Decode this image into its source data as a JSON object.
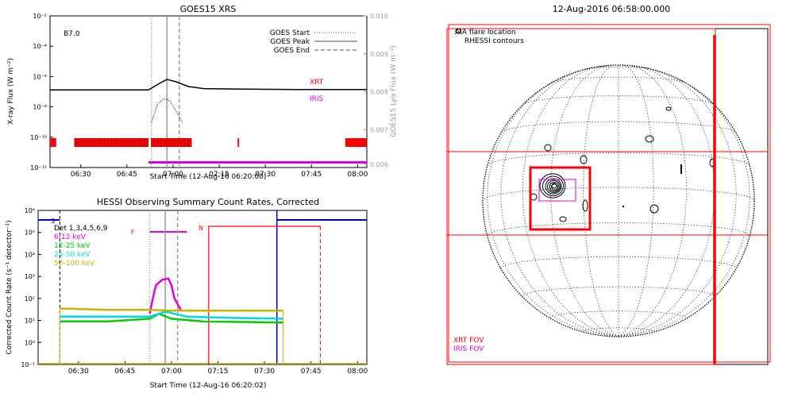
{
  "chart_data": [
    {
      "type": "line",
      "title": "GOES15 XRS",
      "xlabel": "Start Time (12-Aug-16 06:20:00)",
      "ylabel_left": "X-ray Flux (W m⁻²)",
      "ylabel_right": "GOES15 Lyα Flux (W m⁻²)",
      "x_ticks": [
        "06:30",
        "06:45",
        "07:00",
        "07:15",
        "07:30",
        "07:45",
        "08:00"
      ],
      "y_ticks_left": [
        "10⁻²",
        "10⁻⁴",
        "10⁻⁶",
        "10⁻⁸",
        "10⁻¹⁰",
        "10⁻¹²"
      ],
      "y_ticks_right": [
        "0.010",
        "0.009",
        "0.008",
        "0.007",
        "0.006"
      ],
      "class_label": "B7.0",
      "legend": [
        "GOES Start",
        "GOES Peak",
        "GOES End"
      ],
      "legend_position": "top-right",
      "instrument_labels": [
        "XRT",
        "IRIS"
      ],
      "markers": {
        "goes_start": "06:53",
        "goes_peak": "06:58",
        "goes_end": "07:02"
      },
      "series": [
        {
          "name": "long",
          "x": [
            "06:20",
            "06:40",
            "06:52",
            "06:55",
            "06:58",
            "07:01",
            "07:05",
            "07:10",
            "07:20",
            "07:40",
            "08:03"
          ],
          "y": [
            1.3e-07,
            1.3e-07,
            1.3e-07,
            3e-07,
            6.5e-07,
            4.5e-07,
            2.2e-07,
            1.6e-07,
            1.5e-07,
            1.4e-07,
            1.4e-07
          ]
        },
        {
          "name": "short",
          "x": [
            "06:53",
            "06:55",
            "06:57",
            "06:59",
            "07:01",
            "07:03"
          ],
          "y": [
            1e-09,
            1.5e-08,
            3.5e-08,
            2.5e-08,
            5e-09,
            1e-09
          ]
        }
      ],
      "coverage": {
        "XRT": [
          [
            "06:20",
            "06:22"
          ],
          [
            "06:28",
            "06:52"
          ],
          [
            "06:53",
            "07:06"
          ],
          [
            "07:21",
            "07:21.5"
          ],
          [
            "07:56",
            "08:03"
          ]
        ],
        "IRIS": [
          [
            "06:52",
            "08:03"
          ]
        ]
      }
    },
    {
      "type": "line",
      "title": "HESSI Observing Summary Count Rates, Corrected",
      "xlabel": "Start Time (12-Aug-16 06:20:02)",
      "ylabel": "Corrected Count Rate (s⁻¹ detector⁻¹)",
      "x_ticks": [
        "06:30",
        "06:45",
        "07:00",
        "07:15",
        "07:30",
        "07:45",
        "08:00"
      ],
      "y_ticks": [
        "10⁶",
        "10⁵",
        "10⁴",
        "10³",
        "10²",
        "10¹",
        "10⁰",
        "10⁻¹"
      ],
      "legend_title": "Det 1,3,4,5,6,9",
      "series": [
        {
          "name": "6-12 keV",
          "color": "#e000e0",
          "x": [
            "06:53",
            "06:54",
            "06:55",
            "06:57",
            "06:59",
            "07:00",
            "07:01",
            "07:03"
          ],
          "y": [
            20,
            100,
            400,
            700,
            800,
            400,
            100,
            30
          ]
        },
        {
          "name": "12-25 keV",
          "color": "#00cc00",
          "x": [
            "06:24",
            "06:40",
            "06:53",
            "06:56",
            "07:00",
            "07:10",
            "07:36"
          ],
          "y": [
            9,
            9,
            12,
            20,
            12,
            9,
            8
          ]
        },
        {
          "name": "25-50 keV",
          "color": "#00d8e8",
          "x": [
            "06:24",
            "06:40",
            "06:53",
            "06:58",
            "07:05",
            "07:20",
            "07:36"
          ],
          "y": [
            15,
            15,
            15,
            25,
            15,
            13,
            12
          ]
        },
        {
          "name": "50-100 keV",
          "color": "#c8b400",
          "x": [
            "06:24",
            "06:40",
            "06:53",
            "07:00",
            "07:10",
            "07:36"
          ],
          "y": [
            35,
            30,
            30,
            28,
            28,
            28
          ]
        }
      ],
      "flags": [
        {
          "label": "S",
          "x": "06:24"
        },
        {
          "label": "F",
          "x_start": "06:53",
          "x_end": "07:05"
        },
        {
          "label": "N",
          "x_start": "07:12",
          "x_end": "07:48"
        }
      ]
    },
    {
      "type": "map",
      "title": "12-Aug-2016 06:58:00.000",
      "labels": [
        "AIA flare location",
        "RHESSI contours"
      ],
      "fov_labels": [
        "XRT FOV",
        "IRIS FOV"
      ]
    }
  ],
  "colors": {
    "xrt": "#ff0000",
    "iris": "#e000e0",
    "hessi_blue": "#0000c0"
  }
}
